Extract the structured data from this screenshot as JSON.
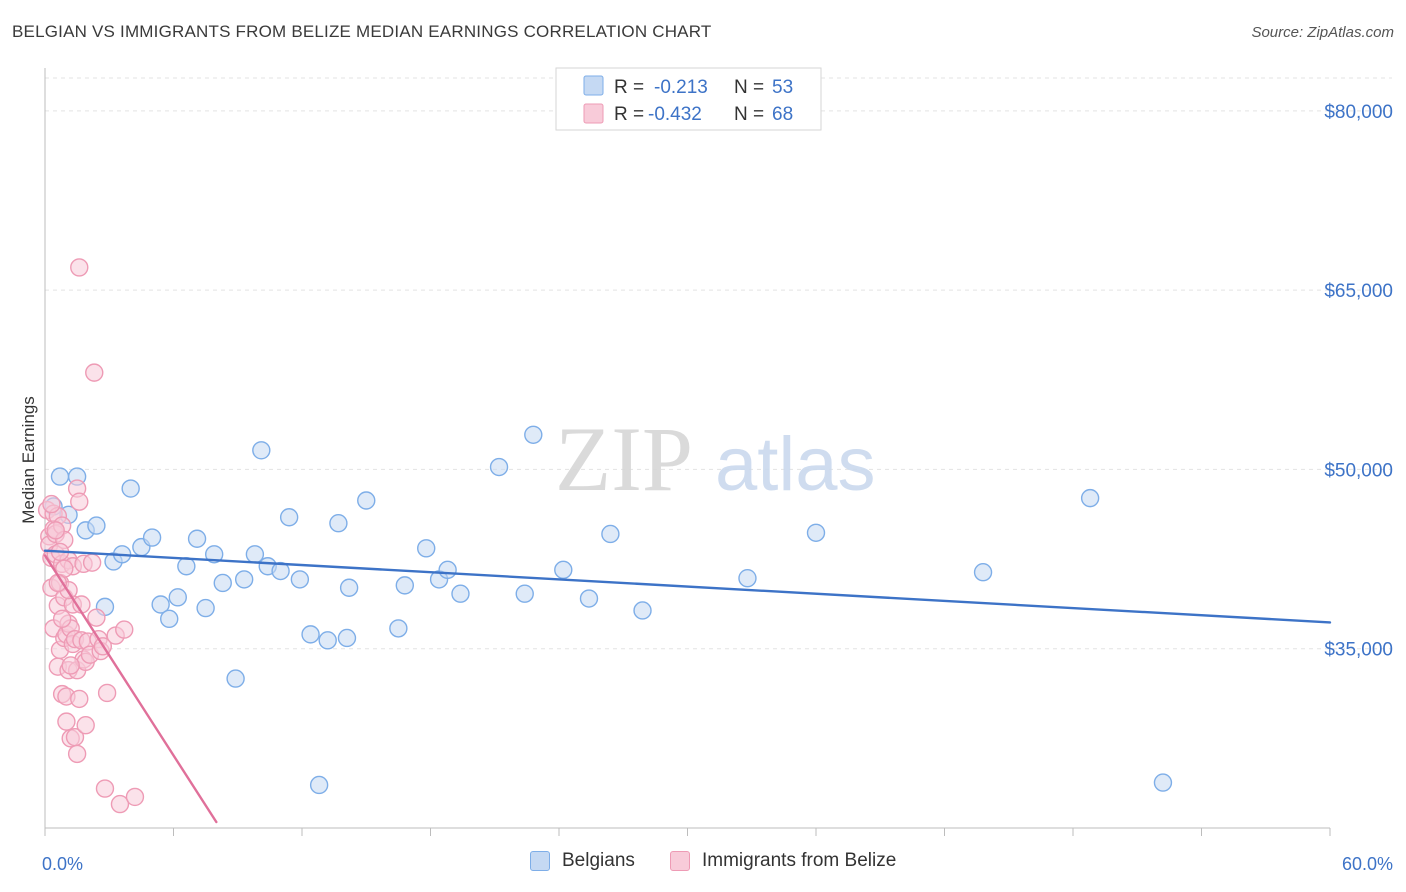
{
  "header": {
    "title": "BELGIAN VS IMMIGRANTS FROM BELIZE MEDIAN EARNINGS CORRELATION CHART",
    "source": "Source: ZipAtlas.com"
  },
  "watermark": {
    "zip": "ZIP",
    "atlas": "atlas"
  },
  "legend_top": {
    "rows": [
      {
        "r_label": "R =",
        "r_value": "-0.213",
        "n_label": "N =",
        "n_value": "53",
        "color": "#7eaee8",
        "fill": "#c5d9f3"
      },
      {
        "r_label": "R =",
        "r_value": "-0.432",
        "n_label": "N =",
        "n_value": "68",
        "color": "#ee9bb5",
        "fill": "#f8cbd9"
      }
    ]
  },
  "legend_bottom": {
    "items": [
      {
        "label": "Belgians",
        "color": "#7eaee8",
        "fill": "#c5d9f3"
      },
      {
        "label": "Immigrants from Belize",
        "color": "#ee9bb5",
        "fill": "#f8cbd9"
      }
    ]
  },
  "chart_data": {
    "type": "scatter",
    "title": "BELGIAN VS IMMIGRANTS FROM BELIZE MEDIAN EARNINGS CORRELATION CHART",
    "xlabel": "",
    "ylabel": "Median Earnings",
    "xlim": [
      0,
      60
    ],
    "ylim": [
      20000,
      83000
    ],
    "x_tick_labels": [
      "0.0%",
      "60.0%"
    ],
    "y_ticks": [
      35000,
      50000,
      65000,
      80000
    ],
    "y_tick_labels": [
      "$35,000",
      "$50,000",
      "$65,000",
      "$80,000"
    ],
    "grid": true,
    "legend": "top-center",
    "series": [
      {
        "name": "Belgians",
        "color": "#3d73c7",
        "point_color": "#7eaee8",
        "point_fill": "#c5d9f3",
        "trend": {
          "x": [
            0,
            60
          ],
          "y": [
            43200,
            37200
          ]
        },
        "points": [
          [
            0.4,
            46900
          ],
          [
            0.7,
            49400
          ],
          [
            1.1,
            46200
          ],
          [
            1.5,
            49400
          ],
          [
            1.9,
            44900
          ],
          [
            2.4,
            45300
          ],
          [
            2.8,
            38500
          ],
          [
            3.2,
            42300
          ],
          [
            3.6,
            42900
          ],
          [
            4.0,
            48400
          ],
          [
            4.5,
            43500
          ],
          [
            5.0,
            44300
          ],
          [
            5.4,
            38700
          ],
          [
            5.8,
            37500
          ],
          [
            6.2,
            39300
          ],
          [
            6.6,
            41900
          ],
          [
            7.1,
            44200
          ],
          [
            7.5,
            38400
          ],
          [
            7.9,
            42900
          ],
          [
            8.3,
            40500
          ],
          [
            8.9,
            32500
          ],
          [
            9.3,
            40800
          ],
          [
            9.8,
            42900
          ],
          [
            10.1,
            51600
          ],
          [
            10.4,
            41900
          ],
          [
            11.0,
            41500
          ],
          [
            11.4,
            46000
          ],
          [
            11.9,
            40800
          ],
          [
            12.4,
            36200
          ],
          [
            12.8,
            23600
          ],
          [
            13.2,
            35700
          ],
          [
            13.7,
            45500
          ],
          [
            14.1,
            35900
          ],
          [
            14.2,
            40100
          ],
          [
            15.0,
            47400
          ],
          [
            16.5,
            36700
          ],
          [
            16.8,
            40300
          ],
          [
            17.8,
            43400
          ],
          [
            18.4,
            40800
          ],
          [
            18.8,
            41600
          ],
          [
            19.4,
            39600
          ],
          [
            21.2,
            50200
          ],
          [
            22.4,
            39600
          ],
          [
            22.8,
            52900
          ],
          [
            24.2,
            41600
          ],
          [
            25.4,
            39200
          ],
          [
            26.4,
            44600
          ],
          [
            27.9,
            38200
          ],
          [
            32.8,
            40900
          ],
          [
            36.0,
            44700
          ],
          [
            43.8,
            41400
          ],
          [
            48.8,
            47600
          ],
          [
            52.2,
            23800
          ]
        ]
      },
      {
        "name": "Immigrants from Belize",
        "color": "#e0709a",
        "point_color": "#ee9bb5",
        "point_fill": "#f8cbd9",
        "trend": {
          "x": [
            0,
            8
          ],
          "y": [
            42800,
            20500
          ]
        },
        "points": [
          [
            0.1,
            46600
          ],
          [
            0.2,
            44400
          ],
          [
            0.2,
            43700
          ],
          [
            0.3,
            42600
          ],
          [
            0.3,
            40100
          ],
          [
            0.4,
            46300
          ],
          [
            0.4,
            45000
          ],
          [
            0.4,
            36700
          ],
          [
            0.5,
            44600
          ],
          [
            0.5,
            42900
          ],
          [
            0.6,
            38600
          ],
          [
            0.6,
            33500
          ],
          [
            0.6,
            46100
          ],
          [
            0.7,
            40500
          ],
          [
            0.7,
            34900
          ],
          [
            0.8,
            45300
          ],
          [
            0.8,
            42100
          ],
          [
            0.8,
            31200
          ],
          [
            0.9,
            44100
          ],
          [
            0.9,
            39300
          ],
          [
            0.9,
            35900
          ],
          [
            1.0,
            36200
          ],
          [
            1.0,
            31000
          ],
          [
            1.0,
            28900
          ],
          [
            1.1,
            42400
          ],
          [
            1.1,
            37100
          ],
          [
            1.1,
            33200
          ],
          [
            1.2,
            36700
          ],
          [
            1.2,
            27500
          ],
          [
            1.3,
            41900
          ],
          [
            1.3,
            38700
          ],
          [
            1.3,
            35400
          ],
          [
            1.4,
            35800
          ],
          [
            1.4,
            27600
          ],
          [
            1.5,
            48400
          ],
          [
            1.5,
            33200
          ],
          [
            1.5,
            26200
          ],
          [
            1.6,
            66900
          ],
          [
            1.6,
            47300
          ],
          [
            1.7,
            38700
          ],
          [
            1.7,
            35700
          ],
          [
            1.8,
            42100
          ],
          [
            1.8,
            34100
          ],
          [
            1.9,
            33900
          ],
          [
            1.9,
            28600
          ],
          [
            2.0,
            35600
          ],
          [
            2.1,
            34500
          ],
          [
            2.2,
            42200
          ],
          [
            2.3,
            58100
          ],
          [
            2.4,
            37600
          ],
          [
            2.5,
            35800
          ],
          [
            2.6,
            34800
          ],
          [
            2.7,
            35200
          ],
          [
            2.8,
            23300
          ],
          [
            2.9,
            31300
          ],
          [
            3.3,
            36100
          ],
          [
            3.5,
            22000
          ],
          [
            3.7,
            36600
          ],
          [
            4.2,
            22600
          ],
          [
            0.3,
            47100
          ],
          [
            0.5,
            44900
          ],
          [
            0.7,
            43100
          ],
          [
            0.9,
            41700
          ],
          [
            1.1,
            39900
          ],
          [
            0.6,
            40500
          ],
          [
            1.2,
            33600
          ],
          [
            1.6,
            30800
          ],
          [
            0.8,
            37500
          ]
        ]
      }
    ]
  }
}
